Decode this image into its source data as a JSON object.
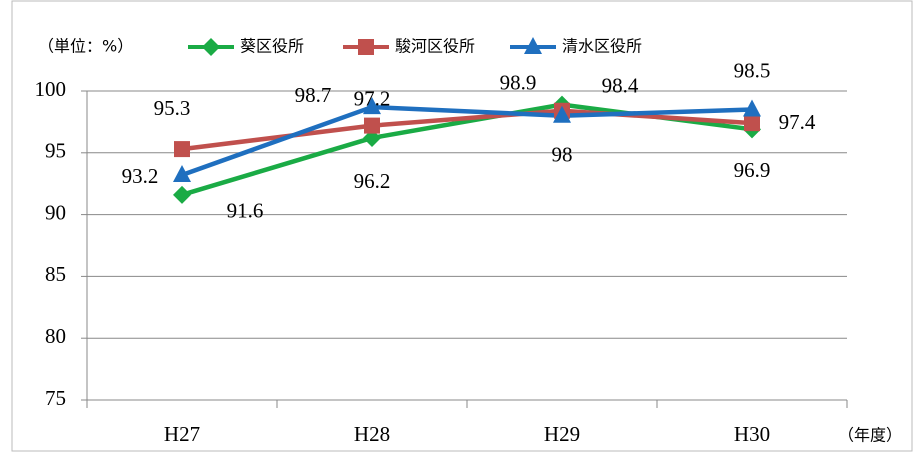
{
  "chart_data": {
    "type": "line",
    "unit_label": "（単位：%）",
    "x_axis_label": "（年度）",
    "categories": [
      "H27",
      "H28",
      "H29",
      "H30"
    ],
    "series": [
      {
        "name": "葵区役所",
        "color": "#1aab45",
        "marker": "diamond",
        "values": [
          91.6,
          96.2,
          98.9,
          96.9
        ]
      },
      {
        "name": "駿河区役所",
        "color": "#c0504d",
        "marker": "square",
        "values": [
          95.3,
          97.2,
          98.4,
          97.4
        ]
      },
      {
        "name": "清水区役所",
        "color": "#1f6fbf",
        "marker": "triangle",
        "values": [
          93.2,
          98.7,
          98.0,
          98.5
        ]
      }
    ],
    "ylim": [
      75,
      100
    ],
    "yticks": [
      75,
      80,
      85,
      90,
      95,
      100
    ],
    "grid": true
  }
}
